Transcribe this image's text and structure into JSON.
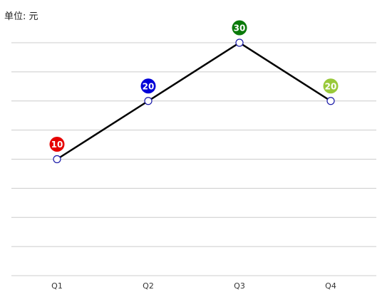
{
  "chart_data": {
    "type": "line",
    "unit_label": "单位: 元",
    "categories": [
      "Q1",
      "Q2",
      "Q3",
      "Q4"
    ],
    "series": [
      {
        "values": [
          10,
          20,
          30,
          20
        ],
        "line_color": "#000000",
        "marker_fill": "#ffffff",
        "marker_stroke": "#1a1aa8"
      }
    ],
    "data_label_colors": [
      "#e60000",
      "#0000d8",
      "#0a7a0a",
      "#99c93a"
    ],
    "ylim": [
      -10,
      30
    ],
    "y_grid_step": 5,
    "grid": true,
    "grid_color": "#cccccc"
  }
}
